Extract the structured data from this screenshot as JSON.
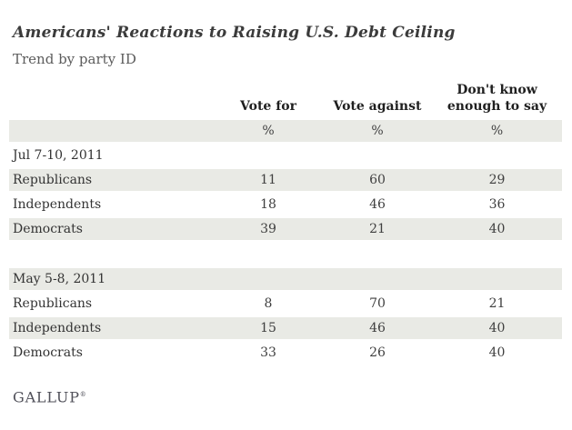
{
  "chart_data": {
    "type": "table",
    "title": "Americans' Reactions to Raising U.S. Debt Ceiling",
    "subtitle": "Trend by party ID",
    "columns": [
      "Vote for",
      "Vote against",
      "Don't know enough to say"
    ],
    "unit_row": [
      "%",
      "%",
      "%"
    ],
    "sections": [
      {
        "date_label": "Jul 7-10, 2011",
        "rows": [
          {
            "label": "Republicans",
            "values": [
              11,
              60,
              29
            ]
          },
          {
            "label": "Independents",
            "values": [
              18,
              46,
              36
            ]
          },
          {
            "label": "Democrats",
            "values": [
              39,
              21,
              40
            ]
          }
        ]
      },
      {
        "date_label": "May 5-8, 2011",
        "rows": [
          {
            "label": "Republicans",
            "values": [
              8,
              70,
              21
            ]
          },
          {
            "label": "Independents",
            "values": [
              15,
              46,
              40
            ]
          },
          {
            "label": "Democrats",
            "values": [
              33,
              26,
              40
            ]
          }
        ]
      }
    ]
  },
  "footer": {
    "brand": "GALLUP",
    "brand_mark": "®"
  },
  "colors": {
    "background": "#ffffff",
    "row_band": "#e9eae5",
    "title_text": "#3b3b3b",
    "subtitle_text": "#5c5c5c",
    "header_text": "#1f1f1f",
    "body_text": "#3f3f3f",
    "brand_text": "#51515a"
  }
}
